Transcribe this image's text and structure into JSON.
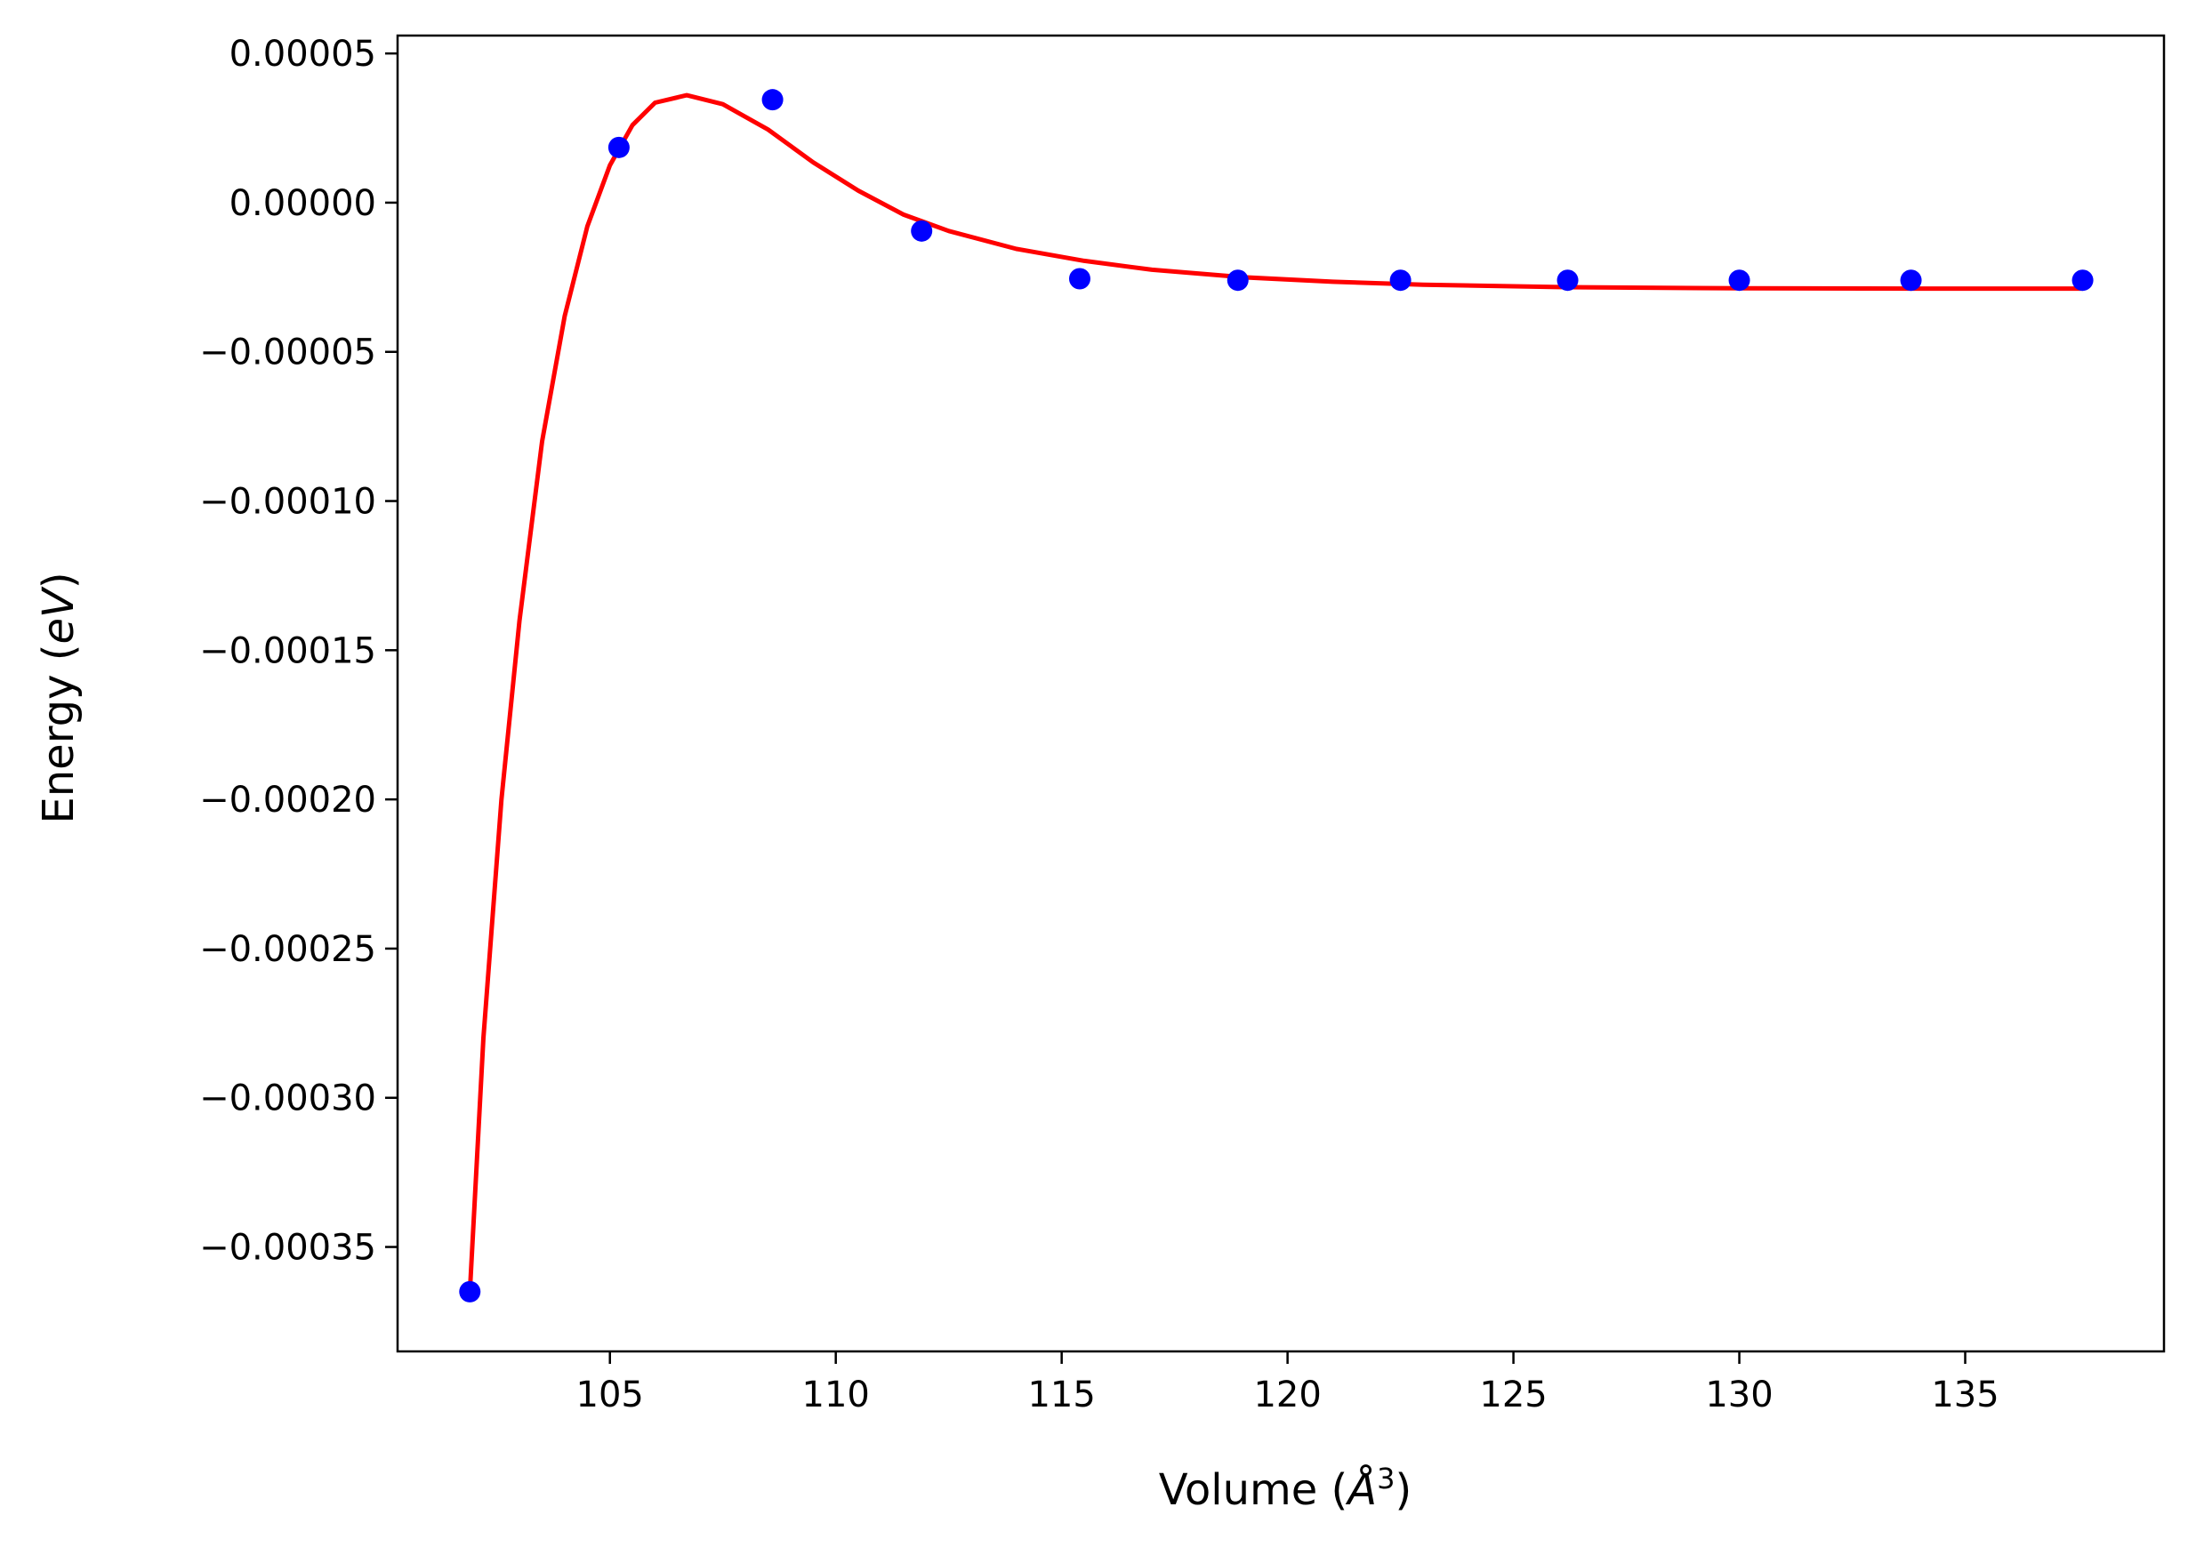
{
  "chart_data": {
    "type": "scatter",
    "title": "",
    "xlabel": "Volume (Å³)",
    "xlabel_parts": {
      "pre": "Volume (",
      "symbol": "Å",
      "sup": "3",
      "post": ")"
    },
    "ylabel": "Energy (eV)",
    "ylabel_parts": {
      "pre": "Energy (",
      "symbol": "eV",
      "post": ")"
    },
    "xlim": [
      100.3,
      139.4
    ],
    "ylim": [
      -0.000385,
      5.6e-05
    ],
    "x_ticks": [
      105,
      110,
      115,
      120,
      125,
      130,
      135
    ],
    "x_tick_labels": [
      "105",
      "110",
      "115",
      "120",
      "125",
      "130",
      "135"
    ],
    "y_ticks": [
      5e-05,
      0.0,
      -5e-05,
      -0.0001,
      -0.00015,
      -0.0002,
      -0.00025,
      -0.0003,
      -0.00035
    ],
    "y_tick_labels": [
      "0.00005",
      "0.00000",
      "−0.00005",
      "−0.00010",
      "−0.00015",
      "−0.00020",
      "−0.00025",
      "−0.00030",
      "−0.00035"
    ],
    "grid": false,
    "legend": "none",
    "series": [
      {
        "kind": "points",
        "color": "#0000ff",
        "x": [
          101.9,
          105.2,
          108.6,
          111.9,
          115.4,
          118.9,
          122.5,
          126.2,
          130.0,
          133.8,
          137.6
        ],
        "y": [
          -0.000365,
          1.85e-05,
          3.45e-05,
          -9.5e-06,
          -2.55e-05,
          -2.6e-05,
          -2.6e-05,
          -2.6e-05,
          -2.6e-05,
          -2.6e-05,
          -2.6e-05
        ]
      },
      {
        "kind": "fit-line",
        "color": "#ff0000",
        "x": [
          101.9,
          102.2,
          102.6,
          103.0,
          103.5,
          104.0,
          104.5,
          105.0,
          105.5,
          106.0,
          106.7,
          107.5,
          108.5,
          109.5,
          110.5,
          111.5,
          112.5,
          114.0,
          115.5,
          117.0,
          119.0,
          121.0,
          123.0,
          126.0,
          130.0,
          134.0,
          137.6
        ],
        "y": [
          -0.000365,
          -0.00028,
          -0.0002,
          -0.00014,
          -8e-05,
          -3.8e-05,
          -8e-06,
          1.25e-05,
          2.6e-05,
          3.35e-05,
          3.6e-05,
          3.3e-05,
          2.45e-05,
          1.35e-05,
          4e-06,
          -4e-06,
          -9.5e-06,
          -1.55e-05,
          -1.95e-05,
          -2.25e-05,
          -2.5e-05,
          -2.65e-05,
          -2.75e-05,
          -2.83e-05,
          -2.87e-05,
          -2.88e-05,
          -2.88e-05
        ]
      }
    ]
  }
}
